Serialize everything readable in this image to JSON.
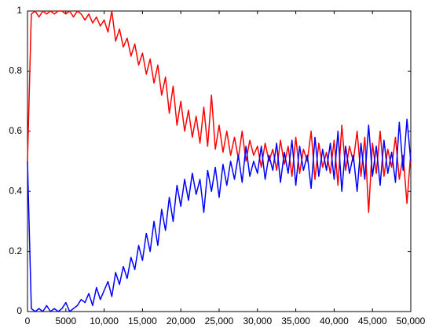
{
  "chart_data": {
    "type": "line",
    "x": [
      0,
      500,
      1000,
      1500,
      2000,
      2500,
      3000,
      3500,
      4000,
      4500,
      5000,
      5500,
      6000,
      6500,
      7000,
      7500,
      8000,
      8500,
      9000,
      9500,
      10000,
      10500,
      11000,
      11500,
      12000,
      12500,
      13000,
      13500,
      14000,
      14500,
      15000,
      15500,
      16000,
      16500,
      17000,
      17500,
      18000,
      18500,
      19000,
      19500,
      20000,
      20500,
      21000,
      21500,
      22000,
      22500,
      23000,
      23500,
      24000,
      24500,
      25000,
      25500,
      26000,
      26500,
      27000,
      27500,
      28000,
      28500,
      29000,
      29500,
      30000,
      30500,
      31000,
      31500,
      32000,
      32500,
      33000,
      33500,
      34000,
      34500,
      35000,
      35500,
      36000,
      36500,
      37000,
      37500,
      38000,
      38500,
      39000,
      39500,
      40000,
      40500,
      41000,
      41500,
      42000,
      42500,
      43000,
      43500,
      44000,
      44500,
      45000,
      45500,
      46000,
      46500,
      47000,
      47500,
      48000,
      48500,
      49000,
      49500,
      50000
    ],
    "series": [
      {
        "color": "#ff0000",
        "values": [
          0.5,
          0.99,
          1,
          0.98,
          1,
          0.99,
          1,
          0.99,
          1,
          1,
          0.99,
          1,
          0.98,
          1,
          0.99,
          0.97,
          0.99,
          0.96,
          0.98,
          0.95,
          0.97,
          0.93,
          1.0,
          0.9,
          0.94,
          0.88,
          0.91,
          0.85,
          0.89,
          0.82,
          0.86,
          0.79,
          0.84,
          0.76,
          0.82,
          0.72,
          0.78,
          0.66,
          0.75,
          0.62,
          0.7,
          0.6,
          0.67,
          0.58,
          0.65,
          0.56,
          0.68,
          0.55,
          0.72,
          0.54,
          0.62,
          0.53,
          0.6,
          0.52,
          0.58,
          0.51,
          0.6,
          0.5,
          0.57,
          0.52,
          0.55,
          0.48,
          0.56,
          0.5,
          0.54,
          0.47,
          0.57,
          0.49,
          0.55,
          0.45,
          0.58,
          0.46,
          0.54,
          0.5,
          0.6,
          0.44,
          0.56,
          0.48,
          0.53,
          0.46,
          0.57,
          0.42,
          0.62,
          0.47,
          0.55,
          0.5,
          0.6,
          0.45,
          0.58,
          0.33,
          0.56,
          0.46,
          0.6,
          0.45,
          0.54,
          0.48,
          0.58,
          0.44,
          0.52,
          0.36,
          0.53
        ]
      },
      {
        "color": "#0000ff",
        "values": [
          0.5,
          0.01,
          0,
          0.01,
          0,
          0.02,
          0,
          0.01,
          0,
          0.01,
          0.03,
          0,
          0.01,
          0.02,
          0.04,
          0.03,
          0.06,
          0.02,
          0.08,
          0.04,
          0.07,
          0.1,
          0.05,
          0.13,
          0.09,
          0.15,
          0.11,
          0.18,
          0.14,
          0.22,
          0.17,
          0.26,
          0.2,
          0.3,
          0.22,
          0.34,
          0.27,
          0.38,
          0.3,
          0.42,
          0.35,
          0.44,
          0.37,
          0.46,
          0.39,
          0.44,
          0.33,
          0.47,
          0.4,
          0.48,
          0.38,
          0.49,
          0.42,
          0.5,
          0.44,
          0.52,
          0.43,
          0.55,
          0.45,
          0.5,
          0.46,
          0.55,
          0.44,
          0.52,
          0.47,
          0.56,
          0.43,
          0.53,
          0.46,
          0.57,
          0.42,
          0.55,
          0.47,
          0.52,
          0.41,
          0.58,
          0.45,
          0.54,
          0.47,
          0.56,
          0.44,
          0.6,
          0.4,
          0.55,
          0.46,
          0.52,
          0.4,
          0.56,
          0.44,
          0.62,
          0.45,
          0.55,
          0.42,
          0.57,
          0.46,
          0.53,
          0.43,
          0.63,
          0.47,
          0.64,
          0.5
        ]
      }
    ],
    "xlim": [
      0,
      50000
    ],
    "xticks": [
      0,
      5000,
      {
        "value": 10000,
        "label": "10,000"
      },
      {
        "value": 15000,
        "label": "15,000"
      },
      {
        "value": 20000,
        "label": "20,000"
      },
      {
        "value": 25000,
        "label": "25,000"
      },
      {
        "value": 30000,
        "label": "30,000"
      },
      {
        "value": 35000,
        "label": "35,000"
      },
      {
        "value": 40000,
        "label": "40,000"
      },
      {
        "value": 45000,
        "label": "45,000"
      },
      {
        "value": 50000,
        "label": "50,000"
      }
    ],
    "ylim": [
      0,
      1
    ],
    "yticks": [
      0,
      0.2,
      0.4,
      0.6,
      0.8,
      1
    ]
  }
}
